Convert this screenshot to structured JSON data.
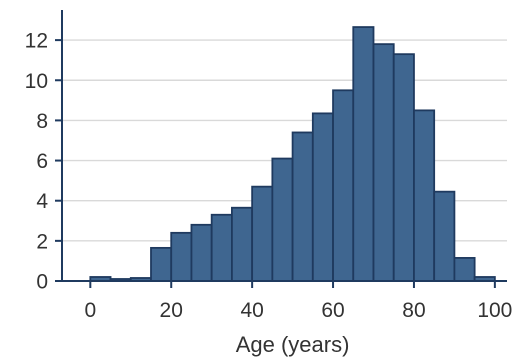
{
  "chart_data": {
    "type": "bar",
    "subtype": "histogram",
    "xlabel": "Age (years)",
    "ylabel": "",
    "xlim": [
      -7,
      103
    ],
    "ylim": [
      0,
      13.5
    ],
    "xticks": [
      0,
      20,
      40,
      60,
      80,
      100
    ],
    "yticks": [
      0,
      2,
      4,
      6,
      8,
      10,
      12
    ],
    "grid": "horizontal",
    "bin_width": 5,
    "bins": [
      {
        "start": 0,
        "end": 5,
        "value": 0.2
      },
      {
        "start": 5,
        "end": 10,
        "value": 0.1
      },
      {
        "start": 10,
        "end": 15,
        "value": 0.15
      },
      {
        "start": 15,
        "end": 20,
        "value": 1.65
      },
      {
        "start": 20,
        "end": 25,
        "value": 2.4
      },
      {
        "start": 25,
        "end": 30,
        "value": 2.8
      },
      {
        "start": 30,
        "end": 35,
        "value": 3.3
      },
      {
        "start": 35,
        "end": 40,
        "value": 3.65
      },
      {
        "start": 40,
        "end": 45,
        "value": 4.7
      },
      {
        "start": 45,
        "end": 50,
        "value": 6.1
      },
      {
        "start": 50,
        "end": 55,
        "value": 7.4
      },
      {
        "start": 55,
        "end": 60,
        "value": 8.35
      },
      {
        "start": 60,
        "end": 65,
        "value": 9.5
      },
      {
        "start": 65,
        "end": 70,
        "value": 12.65
      },
      {
        "start": 70,
        "end": 75,
        "value": 11.8
      },
      {
        "start": 75,
        "end": 80,
        "value": 11.3
      },
      {
        "start": 80,
        "end": 85,
        "value": 8.5
      },
      {
        "start": 85,
        "end": 90,
        "value": 4.45
      },
      {
        "start": 90,
        "end": 95,
        "value": 1.15
      },
      {
        "start": 95,
        "end": 100,
        "value": 0.2
      }
    ],
    "colors": {
      "bar_fill": "#3f6690",
      "bar_edge": "#1f3a5f",
      "axis": "#1f3a5f",
      "grid": "#d9d9d9"
    }
  }
}
